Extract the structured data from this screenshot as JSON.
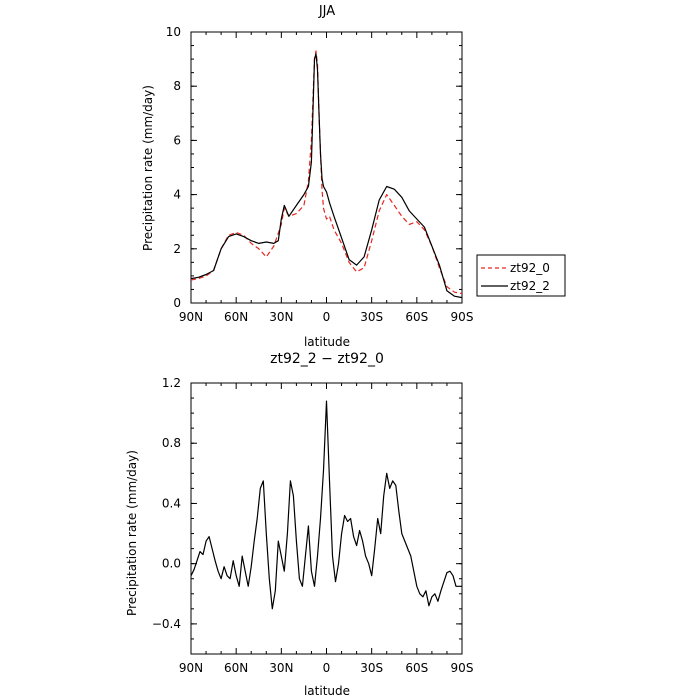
{
  "chart_data": [
    {
      "type": "line",
      "title": "JJA",
      "xlabel": "latitude",
      "ylabel": "Precipitation rate  (mm/day)",
      "xlim": [
        90,
        -90
      ],
      "ylim": [
        0,
        10
      ],
      "x_ticks": [
        90,
        60,
        30,
        0,
        -30,
        -60,
        -90
      ],
      "x_tick_labels": [
        "90N",
        "60N",
        "30N",
        "0",
        "30S",
        "60S",
        "90S"
      ],
      "y_ticks": [
        0,
        2,
        4,
        6,
        8,
        10
      ],
      "y_tick_labels": [
        "0",
        "2",
        "4",
        "6",
        "8",
        "10"
      ],
      "legend_position": "right",
      "series": [
        {
          "name": "zt92_0",
          "color": "#e8261e",
          "style": "dashed",
          "x": [
            90,
            85,
            80,
            75,
            70,
            65,
            60,
            55,
            50,
            45,
            40,
            35,
            30,
            28,
            25,
            20,
            15,
            12,
            10,
            9,
            8,
            7,
            6,
            5,
            4,
            3,
            2,
            0,
            -2,
            -5,
            -10,
            -15,
            -20,
            -25,
            -30,
            -35,
            -40,
            -45,
            -50,
            -55,
            -60,
            -65,
            -70,
            -75,
            -80,
            -85,
            -90
          ],
          "y": [
            0.85,
            0.9,
            1.0,
            1.2,
            2.0,
            2.5,
            2.6,
            2.5,
            2.2,
            2.0,
            1.7,
            2.1,
            2.9,
            3.5,
            3.2,
            3.3,
            3.6,
            4.5,
            6.0,
            7.5,
            9.0,
            9.3,
            8.8,
            7.0,
            5.5,
            4.2,
            3.5,
            3.1,
            3.2,
            2.7,
            2.2,
            1.5,
            1.15,
            1.3,
            2.3,
            3.4,
            4.0,
            3.6,
            3.2,
            2.9,
            3.0,
            2.7,
            2.1,
            1.3,
            0.6,
            0.4,
            0.35
          ]
        },
        {
          "name": "zt92_2",
          "color": "#000000",
          "style": "solid",
          "x": [
            90,
            85,
            80,
            75,
            70,
            65,
            60,
            55,
            50,
            45,
            40,
            35,
            32,
            30,
            28,
            25,
            20,
            15,
            12,
            10,
            9,
            8,
            7,
            6,
            5,
            4,
            3,
            2,
            0,
            -2,
            -5,
            -10,
            -15,
            -20,
            -25,
            -30,
            -35,
            -40,
            -45,
            -50,
            -55,
            -60,
            -65,
            -70,
            -75,
            -80,
            -85,
            -90
          ],
          "y": [
            0.9,
            0.95,
            1.05,
            1.2,
            2.0,
            2.45,
            2.55,
            2.45,
            2.3,
            2.2,
            2.25,
            2.2,
            2.3,
            3.1,
            3.6,
            3.2,
            3.6,
            4.0,
            4.3,
            5.2,
            7.0,
            9.0,
            9.2,
            8.6,
            7.0,
            5.5,
            4.6,
            4.3,
            4.1,
            3.7,
            3.2,
            2.4,
            1.6,
            1.4,
            1.7,
            2.7,
            3.8,
            4.3,
            4.2,
            3.9,
            3.4,
            3.1,
            2.8,
            2.1,
            1.4,
            0.45,
            0.25,
            0.2
          ]
        }
      ]
    },
    {
      "type": "line",
      "title": "zt92_2 − zt92_0",
      "xlabel": "latitude",
      "ylabel": "Precipitation rate  (mm/day)",
      "xlim": [
        90,
        -90
      ],
      "ylim": [
        -0.6,
        1.2
      ],
      "x_ticks": [
        90,
        60,
        30,
        0,
        -30,
        -60,
        -90
      ],
      "x_tick_labels": [
        "90N",
        "60N",
        "30N",
        "0",
        "30S",
        "60S",
        "90S"
      ],
      "y_ticks": [
        -0.4,
        0.0,
        0.4,
        0.8,
        1.2
      ],
      "y_tick_labels": [
        "−0.4",
        "0.0",
        "0.4",
        "0.8",
        "1.2"
      ],
      "series": [
        {
          "color": "#000000",
          "style": "solid",
          "x": [
            90,
            88,
            86,
            84,
            82,
            80,
            78,
            76,
            74,
            72,
            70,
            68,
            66,
            64,
            62,
            60,
            58,
            56,
            54,
            52,
            50,
            48,
            46,
            44,
            42,
            40,
            38,
            36,
            34,
            32,
            30,
            28,
            26,
            24,
            22,
            20,
            18,
            16,
            14,
            12,
            10,
            8,
            6,
            4,
            2,
            0,
            -2,
            -4,
            -6,
            -8,
            -10,
            -12,
            -14,
            -16,
            -18,
            -20,
            -22,
            -24,
            -26,
            -28,
            -30,
            -32,
            -34,
            -36,
            -38,
            -40,
            -42,
            -44,
            -46,
            -48,
            -50,
            -52,
            -54,
            -56,
            -58,
            -60,
            -62,
            -64,
            -66,
            -68,
            -70,
            -72,
            -74,
            -76,
            -78,
            -80,
            -82,
            -84,
            -86,
            -88,
            -90
          ],
          "y": [
            -0.08,
            -0.04,
            0.02,
            0.08,
            0.06,
            0.15,
            0.18,
            0.1,
            0.02,
            -0.05,
            -0.1,
            -0.02,
            -0.08,
            -0.1,
            0.02,
            -0.08,
            -0.15,
            0.05,
            -0.05,
            -0.15,
            -0.02,
            0.15,
            0.3,
            0.5,
            0.55,
            0.2,
            -0.1,
            -0.3,
            -0.18,
            0.15,
            0.05,
            -0.05,
            0.2,
            0.55,
            0.45,
            0.15,
            -0.1,
            -0.15,
            0.05,
            0.25,
            -0.05,
            -0.15,
            0.05,
            0.3,
            0.62,
            1.08,
            0.55,
            0.05,
            -0.12,
            0.0,
            0.2,
            0.32,
            0.28,
            0.3,
            0.18,
            0.12,
            0.22,
            0.15,
            0.05,
            0.0,
            -0.08,
            0.1,
            0.3,
            0.2,
            0.45,
            0.6,
            0.5,
            0.55,
            0.52,
            0.35,
            0.2,
            0.15,
            0.1,
            0.05,
            -0.05,
            -0.15,
            -0.2,
            -0.22,
            -0.18,
            -0.28,
            -0.22,
            -0.2,
            -0.25,
            -0.18,
            -0.12,
            -0.06,
            -0.05,
            -0.08,
            -0.15,
            -0.15,
            -0.15
          ]
        }
      ]
    }
  ]
}
